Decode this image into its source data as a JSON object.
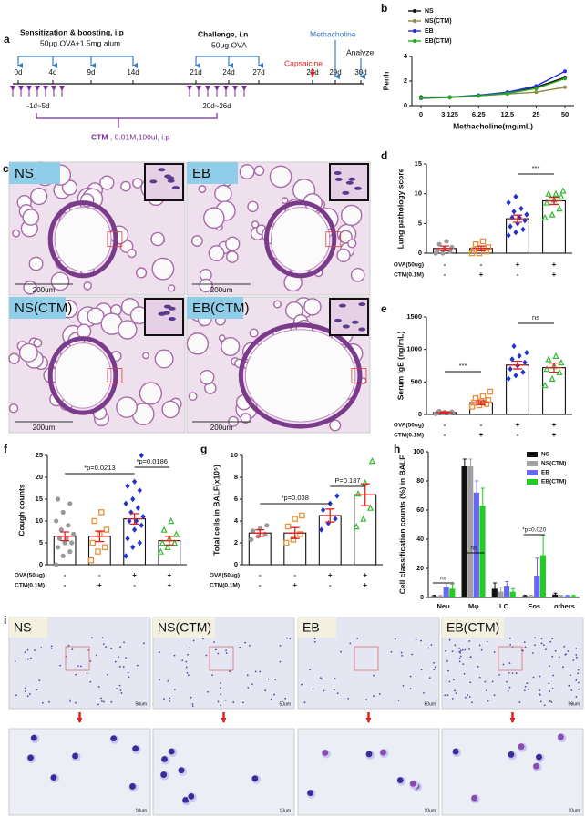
{
  "panel_labels": [
    "a",
    "b",
    "c",
    "d",
    "e",
    "f",
    "g",
    "h",
    "i"
  ],
  "timeline": {
    "sensitization": "Sensitization & boosting, i.p",
    "sensitization_dose": "50μg OVA+1.5mg alum",
    "challenge": "Challenge, i.n",
    "challenge_dose": "50μg OVA",
    "capsaicine": "Capsaicine",
    "methacholine": "Methacholine",
    "analyze": "Analyze",
    "days": [
      "0d",
      "4d",
      "9d",
      "14d",
      "21d",
      "24d",
      "27d",
      "28d",
      "29d",
      "30d"
    ],
    "ranges": [
      "-1d~5d",
      "20d~26d"
    ],
    "ctm": "CTM",
    "ctm_dose": ", 0.01M,100ul, i.p"
  },
  "histology": {
    "panels": [
      {
        "label": "NS",
        "scale": "200um"
      },
      {
        "label": "EB",
        "scale": "200um"
      },
      {
        "label": "NS(CTM)",
        "scale": "200um"
      },
      {
        "label": "EB(CTM)",
        "scale": "200um"
      }
    ]
  },
  "cytology": {
    "panels": [
      {
        "label": "NS",
        "scale": "50um",
        "zoom_scale": "10um"
      },
      {
        "label": "NS(CTM)",
        "scale": "50um",
        "zoom_scale": "10um"
      },
      {
        "label": "EB",
        "scale": "50um",
        "zoom_scale": "10um"
      },
      {
        "label": "EB(CTM)",
        "scale": "50um",
        "zoom_scale": "10um"
      }
    ]
  },
  "chart_data": [
    {
      "type": "line",
      "ylabel": "Penh",
      "xlabel": "Methacholine(mg/mL)",
      "categories": [
        "0",
        "3.125",
        "6.25",
        "12.5",
        "25",
        "50"
      ],
      "ylim": [
        0,
        4
      ],
      "yticks": [
        0,
        2,
        4
      ],
      "legend": "top-left",
      "series": [
        {
          "name": "NS",
          "color": "#111111",
          "values": [
            0.7,
            0.7,
            0.8,
            1.0,
            1.5,
            2.3
          ]
        },
        {
          "name": "NS(CTM)",
          "color": "#8c8a3c",
          "values": [
            0.6,
            0.65,
            0.8,
            0.95,
            1.1,
            1.5
          ]
        },
        {
          "name": "EB",
          "color": "#2a2adf",
          "values": [
            0.6,
            0.7,
            0.85,
            1.1,
            1.6,
            2.8
          ]
        },
        {
          "name": "EB(CTM)",
          "color": "#22aa22",
          "values": [
            0.65,
            0.7,
            0.8,
            1.0,
            1.4,
            2.2
          ]
        }
      ]
    },
    {
      "type": "dotbar",
      "ylabel": "Lung pathology score",
      "ylim": [
        0,
        15
      ],
      "yticks": [
        0,
        5,
        10,
        15
      ],
      "colors": [
        "#999999",
        "#e8913a",
        "#2233cc",
        "#33bb33"
      ],
      "error_color": "#e02020",
      "values": [
        0.8,
        0.8,
        5.8,
        8.8
      ],
      "errors": [
        0.4,
        0.4,
        0.6,
        0.6
      ],
      "points": [
        [
          0,
          0,
          0.3,
          0.5,
          0.8,
          1,
          1.5,
          2
        ],
        [
          0,
          0,
          0.3,
          0.5,
          0.8,
          1,
          1.5,
          2
        ],
        [
          3,
          3.5,
          4,
          4.5,
          5,
          5.5,
          6,
          6,
          6.5,
          7,
          7.5,
          8.5,
          9.5
        ],
        [
          6,
          6.5,
          7.5,
          8.5,
          9,
          9.5,
          10,
          10,
          10.5
        ]
      ],
      "rows": [
        {
          "name": "OVA(50ug)",
          "signs": [
            "-",
            "-",
            "+",
            "+"
          ]
        },
        {
          "name": "CTM(0.1M)",
          "signs": [
            "-",
            "+",
            "-",
            "+"
          ]
        }
      ],
      "annotations": [
        "***"
      ]
    },
    {
      "type": "dotbar",
      "ylabel": "Serum IgE (ng/mL)",
      "ylim": [
        0,
        1500
      ],
      "yticks": [
        0,
        500,
        1000,
        1500
      ],
      "colors": [
        "#999999",
        "#e8913a",
        "#2233cc",
        "#33bb33"
      ],
      "error_color": "#e02020",
      "values": [
        30,
        180,
        760,
        720
      ],
      "errors": [
        10,
        30,
        60,
        70
      ],
      "points": [
        [
          10,
          20,
          25,
          30,
          35,
          40,
          50
        ],
        [
          120,
          140,
          160,
          180,
          200,
          220,
          250,
          280,
          350
        ],
        [
          550,
          600,
          650,
          700,
          750,
          800,
          850,
          900,
          950,
          1050
        ],
        [
          450,
          550,
          650,
          700,
          750,
          800,
          850,
          900
        ]
      ],
      "rows": [
        {
          "name": "OVA(50ug)",
          "signs": [
            "-",
            "-",
            "+",
            "+"
          ]
        },
        {
          "name": "CTM(0.1M)",
          "signs": [
            "-",
            "+",
            "-",
            "+"
          ]
        }
      ],
      "annotations": [
        "***",
        "ns"
      ]
    },
    {
      "type": "dotbar",
      "ylabel": "Cough counts",
      "ylim": [
        0,
        25
      ],
      "yticks": [
        0,
        5,
        10,
        15,
        20,
        25
      ],
      "colors": [
        "#999999",
        "#e8913a",
        "#2233cc",
        "#33bb33"
      ],
      "error_color": "#e02020",
      "values": [
        6.5,
        6.5,
        10.5,
        5.5
      ],
      "errors": [
        1,
        1.2,
        1.2,
        1
      ],
      "points": [
        [
          0,
          2,
          3,
          4,
          5,
          5,
          6,
          6,
          7,
          8,
          9,
          10,
          12,
          14,
          15
        ],
        [
          1,
          3,
          4,
          5,
          7,
          8,
          10,
          12
        ],
        [
          2,
          4,
          5,
          6,
          8,
          9,
          10,
          10,
          11,
          12,
          13,
          14,
          15,
          17,
          18,
          19,
          25
        ],
        [
          3,
          4,
          5,
          5,
          6,
          7,
          8,
          10
        ]
      ],
      "rows": [
        {
          "name": "OVA(50ug)",
          "signs": [
            "-",
            "-",
            "+",
            "+"
          ]
        },
        {
          "name": "CTM(0.1M)",
          "signs": [
            "-",
            "+",
            "-",
            "+"
          ]
        }
      ],
      "annotations": [
        "*p=0.0213",
        "*p=0.0186"
      ]
    },
    {
      "type": "dotbar",
      "ylabel": "Total cells in BALF(x10⁵)",
      "ylim": [
        0,
        10
      ],
      "yticks": [
        0,
        2,
        4,
        6,
        8,
        10
      ],
      "colors": [
        "#999999",
        "#e8913a",
        "#2233cc",
        "#33bb33"
      ],
      "error_color": "#e02020",
      "values": [
        2.9,
        2.9,
        4.5,
        6.4
      ],
      "errors": [
        0.3,
        0.5,
        0.6,
        1
      ],
      "points": [
        [
          2.3,
          2.6,
          2.8,
          3.1,
          3.3,
          3.6
        ],
        [
          2,
          2.3,
          2.8,
          3.5,
          4.2,
          4.5
        ],
        [
          3.2,
          3.8,
          4.2,
          5,
          5.6,
          6.3
        ],
        [
          3.5,
          4.2,
          5.2,
          6.5,
          7.5,
          9.5
        ]
      ],
      "rows": [
        {
          "name": "OVA(50ug)",
          "signs": [
            "-",
            "-",
            "+",
            "+"
          ]
        },
        {
          "name": "CTM(0.1M)",
          "signs": [
            "-",
            "+",
            "-",
            "+"
          ]
        }
      ],
      "annotations": [
        "*p=0.038",
        "P=0.187"
      ]
    },
    {
      "type": "grouped_bar",
      "ylabel": "Cell classification counts (%) in BALF",
      "categories": [
        "Neu",
        "Mφ",
        "LC",
        "Eos",
        "others"
      ],
      "ylim": [
        0,
        100
      ],
      "yticks": [
        0,
        20,
        40,
        60,
        80,
        100
      ],
      "legend": "top-right",
      "series": [
        {
          "name": "NS",
          "color": "#111111",
          "values": [
            1,
            90,
            6,
            1,
            2
          ],
          "errors": [
            0.5,
            5,
            4,
            0.5,
            1
          ]
        },
        {
          "name": "NS(CTM)",
          "color": "#a0a0a0",
          "values": [
            1,
            90,
            4,
            1,
            1
          ],
          "errors": [
            0.5,
            5,
            3,
            0.5,
            0.5
          ]
        },
        {
          "name": "EB",
          "color": "#6666ee",
          "values": [
            7,
            72,
            8,
            15,
            1
          ],
          "errors": [
            3,
            8,
            3,
            12,
            0.5
          ]
        },
        {
          "name": "EB(CTM)",
          "color": "#22cc22",
          "values": [
            6,
            63,
            4,
            29,
            1
          ],
          "errors": [
            3,
            12,
            2,
            14,
            0.5
          ]
        }
      ],
      "annotations": [
        "ns",
        "ns",
        "*p=0.020"
      ]
    }
  ]
}
